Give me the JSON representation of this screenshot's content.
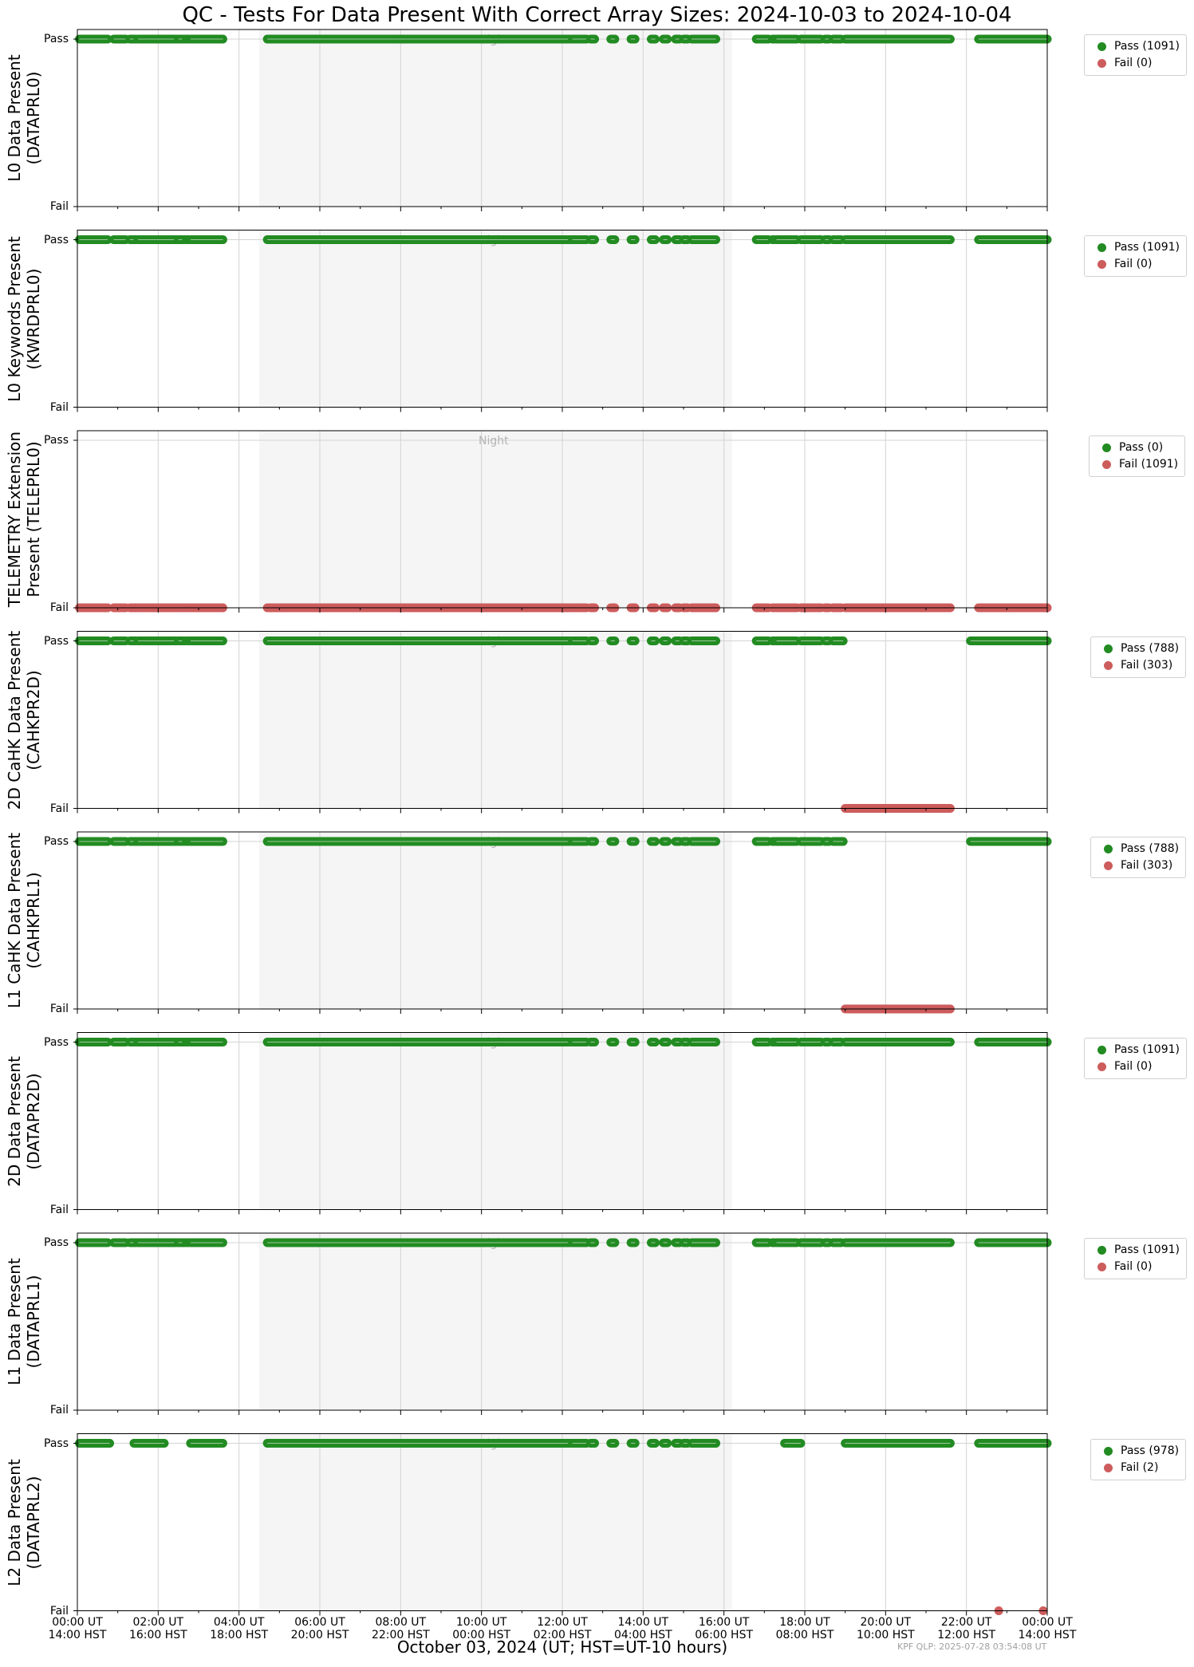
{
  "title": "QC - Tests For Data Present With Correct Array Sizes: 2024-10-03 to 2024-10-04",
  "xlabel": "October 03, 2024 (UT; HST=UT-10 hours)",
  "footer": "KPF QLP: 2025-07-28 03:54:08 UT",
  "colors": {
    "pass": "#228b22",
    "fail": "#cd5c5c",
    "night": "#f5f5f5",
    "grid": "#d3d3d3"
  },
  "chart_data": {
    "type": "scatter",
    "x_unit": "hours UT",
    "xlim": [
      0,
      24
    ],
    "night_span": [
      4.5,
      16.2
    ],
    "night_label": "Night",
    "xticks": [
      {
        "hour": 0,
        "ut": "00:00 UT",
        "hst": "14:00 HST"
      },
      {
        "hour": 2,
        "ut": "02:00 UT",
        "hst": "16:00 HST"
      },
      {
        "hour": 4,
        "ut": "04:00 UT",
        "hst": "18:00 HST"
      },
      {
        "hour": 6,
        "ut": "06:00 UT",
        "hst": "20:00 HST"
      },
      {
        "hour": 8,
        "ut": "08:00 UT",
        "hst": "22:00 HST"
      },
      {
        "hour": 10,
        "ut": "10:00 UT",
        "hst": "00:00 HST"
      },
      {
        "hour": 12,
        "ut": "12:00 UT",
        "hst": "02:00 HST"
      },
      {
        "hour": 14,
        "ut": "14:00 UT",
        "hst": "04:00 HST"
      },
      {
        "hour": 16,
        "ut": "16:00 UT",
        "hst": "06:00 HST"
      },
      {
        "hour": 18,
        "ut": "18:00 UT",
        "hst": "08:00 HST"
      },
      {
        "hour": 20,
        "ut": "20:00 UT",
        "hst": "10:00 HST"
      },
      {
        "hour": 22,
        "ut": "22:00 UT",
        "hst": "12:00 HST"
      },
      {
        "hour": 24,
        "ut": "00:00 UT",
        "hst": "14:00 HST"
      }
    ],
    "yticks": [
      "Pass",
      "Fail"
    ],
    "segment_sets": {
      "full": [
        [
          0.05,
          0.75
        ],
        [
          0.9,
          1.2
        ],
        [
          1.3,
          1.45
        ],
        [
          1.5,
          2.45
        ],
        [
          2.5,
          2.65
        ],
        [
          2.7,
          2.75
        ],
        [
          2.8,
          3.6
        ],
        [
          4.7,
          12.2
        ],
        [
          12.25,
          12.6
        ],
        [
          12.7,
          12.8
        ],
        [
          13.2,
          13.3
        ],
        [
          13.7,
          13.8
        ],
        [
          14.2,
          14.3
        ],
        [
          14.5,
          14.6
        ],
        [
          14.8,
          14.9
        ],
        [
          15.0,
          15.1
        ],
        [
          15.2,
          15.8
        ],
        [
          16.8,
          17.1
        ],
        [
          17.2,
          17.25
        ],
        [
          17.3,
          17.8
        ],
        [
          17.9,
          18.4
        ],
        [
          18.5,
          18.6
        ],
        [
          18.7,
          18.9
        ],
        [
          19.0,
          21.6
        ],
        [
          22.3,
          24.0
        ]
      ],
      "cahk_pass": [
        [
          0.05,
          0.75
        ],
        [
          0.9,
          1.2
        ],
        [
          1.3,
          1.45
        ],
        [
          1.5,
          2.45
        ],
        [
          2.5,
          2.65
        ],
        [
          2.7,
          2.75
        ],
        [
          2.8,
          3.6
        ],
        [
          4.7,
          12.2
        ],
        [
          12.25,
          12.6
        ],
        [
          12.7,
          12.8
        ],
        [
          13.2,
          13.3
        ],
        [
          13.7,
          13.8
        ],
        [
          14.2,
          14.3
        ],
        [
          14.5,
          14.6
        ],
        [
          14.8,
          14.9
        ],
        [
          15.0,
          15.1
        ],
        [
          15.2,
          15.8
        ],
        [
          16.8,
          17.1
        ],
        [
          17.2,
          17.25
        ],
        [
          17.3,
          17.8
        ],
        [
          17.9,
          18.4
        ],
        [
          18.5,
          18.6
        ],
        [
          18.7,
          18.95
        ],
        [
          22.1,
          24.0
        ]
      ],
      "cahk_fail": [
        [
          19.0,
          21.6
        ]
      ],
      "l2_pass": [
        [
          0.05,
          0.8
        ],
        [
          1.4,
          2.15
        ],
        [
          2.8,
          3.6
        ],
        [
          4.7,
          12.2
        ],
        [
          12.25,
          12.6
        ],
        [
          12.7,
          12.8
        ],
        [
          13.2,
          13.3
        ],
        [
          13.7,
          13.8
        ],
        [
          14.2,
          14.3
        ],
        [
          14.5,
          14.6
        ],
        [
          14.8,
          14.9
        ],
        [
          15.0,
          15.1
        ],
        [
          15.2,
          15.8
        ],
        [
          17.5,
          17.9
        ],
        [
          19.0,
          21.6
        ],
        [
          22.3,
          24.0
        ]
      ],
      "l2_fail": [
        [
          22.8,
          22.8
        ],
        [
          23.9,
          23.9
        ]
      ]
    },
    "panels": [
      {
        "ylabel": [
          "L0 Data Present",
          "(DATAPRL0)"
        ],
        "pass_label": "Pass (1091)",
        "fail_label": "Fail (0)",
        "pass": "full",
        "fail": null,
        "night_label_row": "pass",
        "legend_left": 1359
      },
      {
        "ylabel": [
          "L0 Keywords Present",
          "(KWRDPRL0)"
        ],
        "pass_label": "Pass (1091)",
        "fail_label": "Fail (0)",
        "pass": "full",
        "fail": null,
        "night_label_row": "pass",
        "legend_left": 1359
      },
      {
        "ylabel": [
          "TELEMETRY Extension",
          "Present (TELEPRL0)"
        ],
        "pass_label": "Pass (0)",
        "fail_label": "Fail (1091)",
        "pass": null,
        "fail": "full",
        "night_label_row": "top",
        "legend_left": 1365
      },
      {
        "ylabel": [
          "2D CaHK Data Present",
          "(CAHKPR2D)"
        ],
        "pass_label": "Pass (788)",
        "fail_label": "Fail (303)",
        "pass": "cahk_pass",
        "fail": "cahk_fail",
        "night_label_row": "pass",
        "legend_left": 1367
      },
      {
        "ylabel": [
          "L1 CaHK Data Present",
          "(CAHKPRL1)"
        ],
        "pass_label": "Pass (788)",
        "fail_label": "Fail (303)",
        "pass": "cahk_pass",
        "fail": "cahk_fail",
        "night_label_row": "pass",
        "legend_left": 1367
      },
      {
        "ylabel": [
          "2D Data Present",
          "(DATAPR2D)"
        ],
        "pass_label": "Pass (1091)",
        "fail_label": "Fail (0)",
        "pass": "full",
        "fail": null,
        "night_label_row": "pass",
        "legend_left": 1359
      },
      {
        "ylabel": [
          "L1 Data Present",
          "(DATAPRL1)"
        ],
        "pass_label": "Pass (1091)",
        "fail_label": "Fail (0)",
        "pass": "full",
        "fail": null,
        "night_label_row": "pass",
        "legend_left": 1359
      },
      {
        "ylabel": [
          "L2 Data Present",
          "(DATAPRL2)"
        ],
        "pass_label": "Pass (978)",
        "fail_label": "Fail (2)",
        "pass": "l2_pass",
        "fail": "l2_fail",
        "night_label_row": "pass",
        "legend_left": 1367
      }
    ]
  }
}
